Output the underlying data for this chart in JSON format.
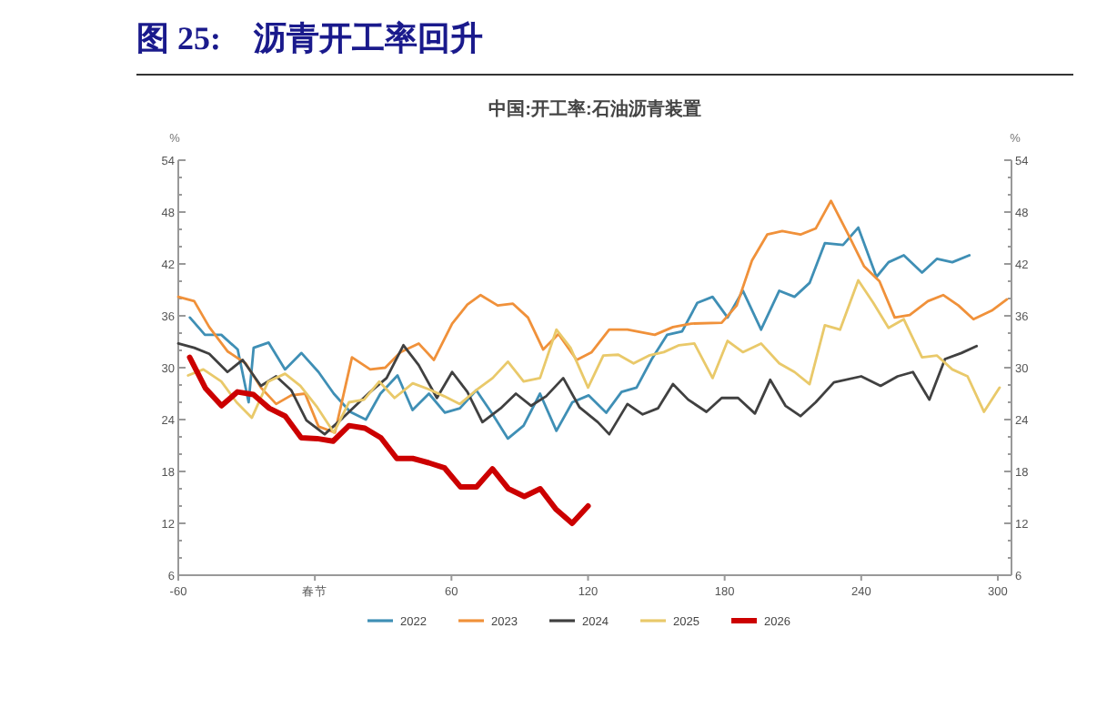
{
  "chart_data": {
    "type": "line",
    "title": "图 25:　沥青开工率回升",
    "subtitle": "中国:开工率:石油沥青装置",
    "ylabel": "%",
    "y2label": "%",
    "xlim": [
      -60,
      306
    ],
    "xticks": [
      -60,
      {
        "value": 0,
        "label": "春节"
      },
      60,
      120,
      180,
      240,
      300
    ],
    "ylim": [
      6,
      54
    ],
    "yticks": [
      6,
      12,
      18,
      24,
      30,
      36,
      42,
      48,
      54
    ],
    "y2lim": [
      6,
      54
    ],
    "y2ticks": [
      6,
      12,
      18,
      24,
      30,
      36,
      42,
      48,
      54
    ],
    "legend": "bottom",
    "grid": false,
    "series": [
      {
        "name": "2022",
        "color": "#3f8fb5",
        "x": [
          -54.9,
          -48.3,
          -41.1,
          -33.9,
          -29.1,
          -26.9,
          -20.3,
          -13.1,
          -5.9,
          1.6,
          8.3,
          15.5,
          22.4,
          28.8,
          36.3,
          42.9,
          50.1,
          57.1,
          63.7,
          70.9,
          78.1,
          84.8,
          91.7,
          98.9,
          106.1,
          113.1,
          120.3,
          128,
          134.7,
          141.3,
          148,
          154.7,
          161.3,
          168,
          174.7,
          181.3,
          188,
          196,
          204,
          210.7,
          217.3,
          224,
          232,
          238.7,
          246.7,
          252,
          258.7,
          266.7,
          273.3,
          280,
          287.5
        ],
        "values": [
          35.8,
          33.8,
          33.8,
          32.1,
          26.0,
          32.3,
          32.9,
          29.8,
          31.7,
          29.5,
          27.0,
          24.9,
          24.0,
          27.0,
          29.1,
          25.1,
          27.0,
          24.8,
          25.3,
          27.4,
          24.6,
          21.8,
          23.3,
          27.0,
          22.7,
          26.0,
          26.8,
          24.8,
          27.2,
          27.7,
          31.0,
          33.8,
          34.2,
          37.5,
          38.2,
          35.8,
          38.9,
          34.4,
          38.9,
          38.2,
          39.8,
          44.4,
          44.2,
          46.2,
          40.5,
          42.2,
          43.0,
          41.0,
          42.6,
          42.2,
          43.0
        ]
      },
      {
        "name": "2023",
        "color": "#f0913a",
        "x": [
          -60,
          -53,
          -46.4,
          -38.4,
          -30.4,
          -23.7,
          -17,
          -10.4,
          -4.3,
          1.6,
          8.8,
          16.3,
          24.3,
          30.9,
          37.6,
          45.6,
          52.3,
          60.3,
          67,
          72.8,
          80.3,
          87,
          93.6,
          100.3,
          107,
          115,
          121.6,
          129.3,
          137.3,
          149.3,
          157.3,
          165.3,
          178.7,
          185.3,
          192,
          198.7,
          205.3,
          213.3,
          220,
          226.7,
          234.7,
          241.3,
          248,
          254.7,
          261.3,
          269.3,
          276,
          282.7,
          289.3,
          297.3,
          304
        ],
        "values": [
          38.2,
          37.7,
          34.7,
          31.9,
          30.5,
          27.7,
          25.8,
          26.8,
          27.0,
          23.2,
          22.5,
          31.2,
          29.8,
          30.0,
          31.8,
          32.8,
          30.9,
          35.1,
          37.3,
          38.4,
          37.2,
          37.4,
          35.8,
          32.1,
          33.9,
          30.9,
          31.8,
          34.4,
          34.4,
          33.8,
          34.7,
          35.1,
          35.2,
          37.2,
          42.4,
          45.4,
          45.8,
          45.4,
          46.1,
          49.3,
          45.2,
          41.7,
          40.0,
          35.8,
          36.1,
          37.7,
          38.4,
          37.2,
          35.6,
          36.6,
          37.9
        ]
      },
      {
        "name": "2024",
        "color": "#404040",
        "x": [
          -60,
          -53,
          -46.4,
          -38.4,
          -31.7,
          -23.7,
          -17,
          -10.4,
          -3.7,
          4.3,
          12.3,
          24.3,
          31.5,
          38.9,
          45.6,
          53.6,
          60.3,
          67,
          73.6,
          81.6,
          88.3,
          95,
          101.6,
          109.1,
          116.3,
          124.3,
          129.3,
          137.3,
          144,
          150.7,
          157.3,
          164,
          172,
          178.7,
          185.9,
          193.3,
          200,
          206.7,
          213.3,
          220,
          228,
          240,
          248.5,
          256,
          262.7,
          269.9,
          276.8,
          284,
          290.7
        ],
        "values": [
          32.8,
          32.3,
          31.6,
          29.5,
          30.9,
          27.9,
          29.0,
          27.4,
          23.9,
          22.3,
          24.2,
          27.2,
          28.8,
          32.6,
          30.3,
          26.5,
          29.5,
          27.2,
          23.7,
          25.3,
          27.0,
          25.6,
          26.7,
          28.8,
          25.4,
          23.7,
          22.3,
          25.8,
          24.6,
          25.3,
          28.1,
          26.3,
          24.9,
          26.5,
          26.5,
          24.7,
          28.6,
          25.6,
          24.4,
          26.0,
          28.3,
          29.0,
          27.9,
          29.0,
          29.5,
          26.3,
          31.0,
          31.7,
          32.5
        ]
      },
      {
        "name": "2025",
        "color": "#e9c96a",
        "x": [
          -55.7,
          -49,
          -41.1,
          -34.4,
          -27.7,
          -20.5,
          -13.1,
          -6.4,
          1.1,
          8.3,
          15,
          21.6,
          28.3,
          35,
          43,
          50.1,
          56.8,
          63.7,
          70.9,
          78.1,
          84.8,
          91.7,
          98.9,
          106.1,
          112.3,
          120,
          126.7,
          133.3,
          140,
          146.7,
          153.3,
          160,
          166.7,
          174.7,
          181.3,
          188,
          196,
          204,
          210.7,
          217.3,
          224,
          230.7,
          238.7,
          245.3,
          252,
          258.7,
          266.7,
          273.3,
          280,
          286.7,
          293.9,
          300.8
        ],
        "values": [
          29.1,
          29.8,
          28.4,
          26.0,
          24.2,
          28.4,
          29.3,
          27.9,
          25.4,
          22.5,
          26.0,
          26.3,
          28.4,
          26.5,
          28.2,
          27.5,
          26.7,
          25.8,
          27.4,
          28.8,
          30.7,
          28.4,
          28.8,
          34.4,
          32.3,
          27.7,
          31.4,
          31.5,
          30.5,
          31.4,
          31.8,
          32.6,
          32.8,
          28.8,
          33.1,
          31.8,
          32.8,
          30.5,
          29.5,
          28.1,
          34.9,
          34.4,
          40.1,
          37.5,
          34.6,
          35.6,
          31.2,
          31.4,
          29.8,
          29.0,
          24.9,
          27.7
        ]
      },
      {
        "name": "2026",
        "color": "#cc0000",
        "x": [
          -55,
          -48,
          -41,
          -34,
          -27,
          -20,
          -13,
          -6,
          1,
          8,
          15,
          22,
          29,
          36,
          43,
          50,
          57,
          64,
          71,
          78,
          85,
          92,
          99,
          106,
          113,
          120
        ],
        "values": [
          31.2,
          27.6,
          25.6,
          27.2,
          26.9,
          25.3,
          24.4,
          21.9,
          21.8,
          21.5,
          23.3,
          23.0,
          21.9,
          19.5,
          19.5,
          19.0,
          18.4,
          16.2,
          16.2,
          18.3,
          16.0,
          15.1,
          16.0,
          13.6,
          12.0,
          14.0
        ]
      }
    ]
  }
}
